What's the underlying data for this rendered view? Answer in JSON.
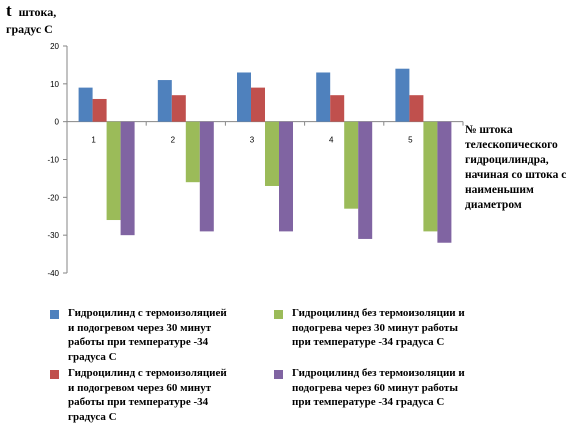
{
  "chart_data": {
    "type": "bar",
    "ylabel_main": "t",
    "ylabel_sub": "штока,",
    "ylabel_line2": "градус С",
    "xlabel": "№ штока телескопического гидроцилиндра, начиная со штока с наименьшим диаметром",
    "categories": [
      "1",
      "2",
      "3",
      "4",
      "5"
    ],
    "ylim": [
      -40,
      20
    ],
    "yticks": [
      "20",
      "10",
      "0",
      "-10",
      "-20",
      "-30",
      "-40"
    ],
    "gridlines": false,
    "series": [
      {
        "name": "Гидроцилинд с термоизоляцией\nи подогревом через 30 минут\nработы при температуре  -34\n градуса   С",
        "color": "#4F81BD",
        "values": [
          9,
          11,
          13,
          13,
          14
        ]
      },
      {
        "name": "Гидроцилинд с термоизоляцией\nи подогревом через 60 минут\nработы при температуре -34\n  градуса  С",
        "color": "#C0504D",
        "values": [
          6,
          7,
          9,
          7,
          7
        ]
      },
      {
        "name": "Гидроцилинд без термоизоляции и\nподогрева через 30 минут работы\nпри температуре   -34 градуса С",
        "color": "#9BBB59",
        "values": [
          -26,
          -16,
          -17,
          -23,
          -29
        ]
      },
      {
        "name": "Гидроцилинд без термоизоляции и\nподогрева через 60 минут работы\nпри температуре  -34 градуса С",
        "color": "#8064A2",
        "values": [
          -30,
          -29,
          -29,
          -31,
          -32
        ]
      }
    ]
  }
}
